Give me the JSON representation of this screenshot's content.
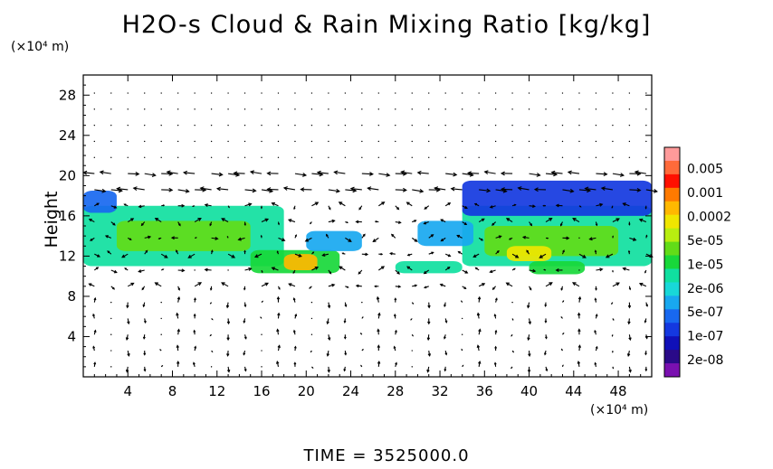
{
  "chart_data": {
    "type": "heatmap",
    "title": "H2O-s Cloud & Rain Mixing Ratio [kg/kg]",
    "ylabel": "Height",
    "x_unit": "(×10⁴ m)",
    "y_unit": "(×10⁴ m)",
    "footer": "TIME = 3525000.0",
    "xlim": [
      0,
      51
    ],
    "ylim": [
      0,
      30
    ],
    "x_ticks": [
      4,
      8,
      12,
      16,
      20,
      24,
      28,
      32,
      36,
      40,
      44,
      48
    ],
    "y_ticks": [
      4,
      8,
      12,
      16,
      20,
      24,
      28
    ],
    "colorbar": {
      "labels": [
        "0.005",
        "0.001",
        "0.0002",
        "5e-05",
        "1e-05",
        "2e-06",
        "5e-07",
        "1e-07",
        "2e-08"
      ],
      "colors": [
        "#ff9a9a",
        "#ff6a3a",
        "#ff1000",
        "#ff7a00",
        "#ffb800",
        "#f0e600",
        "#b8ee10",
        "#62dc18",
        "#18d83a",
        "#10e0a0",
        "#18d8d8",
        "#18a8f0",
        "#1868f0",
        "#1438e0",
        "#1010b8",
        "#2a0a88",
        "#7a10b0"
      ]
    },
    "regions": [
      {
        "x": [
          0,
          18
        ],
        "y": [
          11,
          17
        ],
        "level": 9
      },
      {
        "x": [
          3,
          15
        ],
        "y": [
          12.5,
          15.5
        ],
        "level": 7
      },
      {
        "x": [
          15,
          23
        ],
        "y": [
          10.3,
          12.6
        ],
        "level": 8
      },
      {
        "x": [
          18,
          21
        ],
        "y": [
          10.6,
          12.2
        ],
        "level": 4
      },
      {
        "x": [
          0,
          3
        ],
        "y": [
          16.3,
          18.5
        ],
        "level": 12
      },
      {
        "x": [
          20,
          25
        ],
        "y": [
          12.5,
          14.5
        ],
        "level": 11
      },
      {
        "x": [
          34,
          51
        ],
        "y": [
          11,
          17
        ],
        "level": 9
      },
      {
        "x": [
          36,
          48
        ],
        "y": [
          12,
          15
        ],
        "level": 7
      },
      {
        "x": [
          38,
          42
        ],
        "y": [
          11.5,
          13
        ],
        "level": 5
      },
      {
        "x": [
          34,
          51
        ],
        "y": [
          16,
          19.5
        ],
        "level": 13
      },
      {
        "x": [
          40,
          45
        ],
        "y": [
          10.2,
          11.5
        ],
        "level": 8
      },
      {
        "x": [
          28,
          34
        ],
        "y": [
          10.3,
          11.5
        ],
        "level": 9
      },
      {
        "x": [
          30,
          35
        ],
        "y": [
          13,
          15.5
        ],
        "level": 11
      }
    ]
  }
}
